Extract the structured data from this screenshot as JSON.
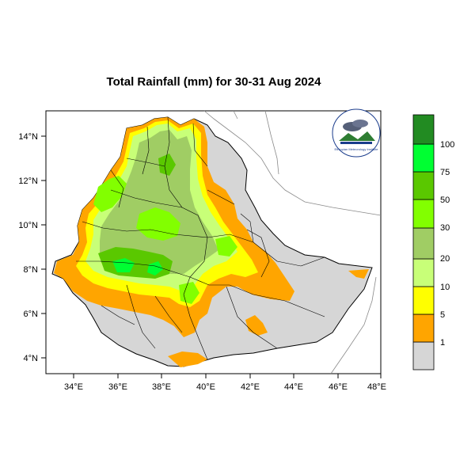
{
  "title": "Total Rainfall (mm) for 30-31 Aug 2024",
  "axes": {
    "x_ticks": [
      "34°E",
      "36°E",
      "38°E",
      "40°E",
      "42°E",
      "44°E",
      "46°E",
      "48°E"
    ],
    "y_ticks": [
      "14°N",
      "12°N",
      "10°N",
      "8°N",
      "6°N",
      "4°N"
    ]
  },
  "legend": {
    "labels": [
      "1",
      "5",
      "10",
      "20",
      "30",
      "50",
      "75",
      "100"
    ],
    "colors": [
      "#d6d6d6",
      "#ffa500",
      "#ffff00",
      "#c8ff78",
      "#a0cd64",
      "#82ff00",
      "#5ac800",
      "#00ff32",
      "#00d200",
      "#228b22"
    ]
  },
  "chart_data": {
    "type": "heatmap",
    "title": "Total Rainfall (mm) for 30-31 Aug 2024",
    "xlim": [
      33,
      48
    ],
    "ylim": [
      3,
      15
    ],
    "x_ticks": [
      34,
      36,
      38,
      40,
      42,
      44,
      46,
      48
    ],
    "y_ticks": [
      4,
      6,
      8,
      10,
      12,
      14
    ],
    "color_scale_breaks_mm": [
      1,
      5,
      10,
      20,
      30,
      50,
      75,
      100
    ],
    "colorbar_position": "right"
  },
  "logo": {
    "text": "Ethiopian Meteorology Institute",
    "colors": [
      "#1a3c8c",
      "#2e7d32"
    ]
  }
}
